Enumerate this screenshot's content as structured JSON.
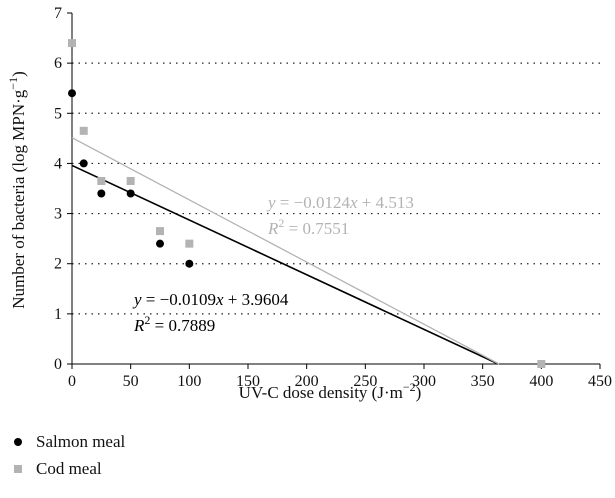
{
  "chart_data": {
    "type": "scatter",
    "xlabel_main": "UV-C dose density (J·m",
    "xlabel_sup": "−2",
    "xlabel_end": ")",
    "ylabel_main": "Number of bacteria (log MPN·g",
    "ylabel_sup": "−1",
    "ylabel_end": ")",
    "xlim": [
      0,
      450
    ],
    "ylim": [
      0,
      7
    ],
    "x_ticks": [
      0,
      50,
      100,
      150,
      200,
      250,
      300,
      350,
      400,
      450
    ],
    "y_ticks": [
      0,
      1,
      2,
      3,
      4,
      5,
      6,
      7
    ],
    "grid": "horizontal dotted",
    "legend_position": "bottom-left",
    "series": [
      {
        "name": "Salmon meal",
        "color": "#000000",
        "marker": "circle",
        "x": [
          0,
          10,
          25,
          50,
          75,
          100,
          400
        ],
        "y": [
          5.4,
          4.0,
          3.4,
          3.4,
          2.4,
          2.0,
          0
        ],
        "trend": {
          "slope": -0.0109,
          "intercept": 3.9604,
          "eq_main": "y = −0.0109x + 3.9604",
          "r2_label": "R",
          "r2_value": " = 0.7889"
        }
      },
      {
        "name": "Cod meal",
        "color": "#b3b3b3",
        "marker": "square",
        "x": [
          0,
          10,
          25,
          50,
          75,
          100,
          400
        ],
        "y": [
          6.4,
          4.65,
          3.65,
          3.65,
          2.65,
          2.4,
          0
        ],
        "trend": {
          "slope": -0.0124,
          "intercept": 4.513,
          "eq_main": "y = −0.0124x + 4.513",
          "r2_label": "R",
          "r2_value": " = 0.7551"
        }
      }
    ]
  }
}
